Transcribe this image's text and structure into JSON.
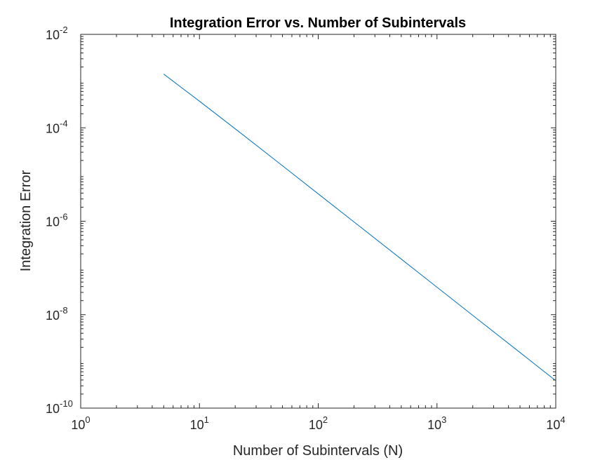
{
  "chart_data": {
    "type": "line",
    "title": "Integration Error vs. Number of Subintervals",
    "xlabel": "Number of Subintervals (N)",
    "ylabel": "Integration Error",
    "xscale": "log",
    "yscale": "log",
    "xlim": [
      1,
      10000
    ],
    "ylim": [
      1e-10,
      0.01
    ],
    "grid": false,
    "legend": "none",
    "x_ticks": [
      {
        "base": "10",
        "exp": "0",
        "value": 1
      },
      {
        "base": "10",
        "exp": "1",
        "value": 10
      },
      {
        "base": "10",
        "exp": "2",
        "value": 100
      },
      {
        "base": "10",
        "exp": "3",
        "value": 1000
      },
      {
        "base": "10",
        "exp": "4",
        "value": 10000
      }
    ],
    "y_ticks": [
      {
        "base": "10",
        "exp": "-10",
        "value": 1e-10
      },
      {
        "base": "10",
        "exp": "-8",
        "value": 1e-08
      },
      {
        "base": "10",
        "exp": "-6",
        "value": 1e-06
      },
      {
        "base": "10",
        "exp": "-4",
        "value": 0.0001
      },
      {
        "base": "10",
        "exp": "-2",
        "value": 0.01
      }
    ],
    "series": [
      {
        "color": "#0072BD",
        "x": [
          5,
          10,
          20,
          50,
          100,
          200,
          500,
          1000,
          2000,
          5000,
          10000
        ],
        "y": [
          0.00141,
          0.000371,
          9.52e-05,
          1.54e-05,
          3.86e-06,
          9.66e-07,
          1.55e-07,
          3.87e-08,
          9.67e-09,
          1.55e-09,
          3.87e-10
        ]
      }
    ]
  }
}
